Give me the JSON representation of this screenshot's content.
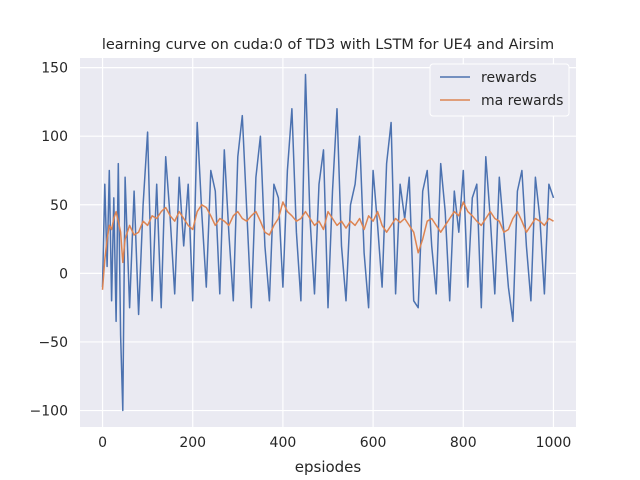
{
  "chart_data": {
    "type": "line",
    "title": "learning curve on cuda:0 of TD3 with LSTM for UE4 and Airsim",
    "xlabel": "epsiodes",
    "ylabel": "",
    "xlim": [
      -50,
      1050
    ],
    "ylim": [
      -112,
      157
    ],
    "xticks": [
      0,
      200,
      400,
      600,
      800,
      1000
    ],
    "yticks": [
      -100,
      -50,
      0,
      50,
      100,
      150
    ],
    "xtick_labels": [
      "0",
      "200",
      "400",
      "600",
      "800",
      "1000"
    ],
    "ytick_labels": [
      "−100",
      "−50",
      "0",
      "50",
      "100",
      "150"
    ],
    "grid": true,
    "legend_position": "top-right",
    "colors": {
      "background": "#eaeaf2",
      "grid": "#ffffff",
      "rewards": "#4c72b0",
      "ma_rewards": "#dd8452"
    },
    "series": [
      {
        "name": "rewards",
        "note_points": "approximate envelope of a noisy trace, sampled every 10 episodes; extremes at episode 45 (-100) and 450 (145)",
        "x": [
          0,
          5,
          10,
          15,
          20,
          25,
          30,
          35,
          40,
          45,
          50,
          60,
          70,
          80,
          90,
          100,
          110,
          120,
          130,
          140,
          150,
          160,
          170,
          180,
          190,
          200,
          210,
          220,
          230,
          240,
          250,
          260,
          270,
          280,
          290,
          300,
          310,
          320,
          330,
          340,
          350,
          360,
          370,
          380,
          390,
          400,
          410,
          420,
          430,
          440,
          450,
          460,
          470,
          480,
          490,
          500,
          510,
          520,
          530,
          540,
          550,
          560,
          570,
          580,
          590,
          600,
          610,
          620,
          630,
          640,
          650,
          660,
          670,
          680,
          690,
          700,
          710,
          720,
          730,
          740,
          750,
          760,
          770,
          780,
          790,
          800,
          810,
          820,
          830,
          840,
          850,
          860,
          870,
          880,
          890,
          900,
          910,
          920,
          930,
          940,
          950,
          960,
          970,
          980,
          990,
          1000
        ],
        "values": [
          -10,
          65,
          5,
          75,
          -20,
          55,
          -35,
          80,
          -45,
          -100,
          70,
          -25,
          60,
          -30,
          50,
          103,
          -20,
          65,
          -25,
          85,
          40,
          -15,
          70,
          20,
          65,
          -20,
          110,
          45,
          -10,
          75,
          60,
          -15,
          90,
          30,
          -20,
          85,
          115,
          45,
          -25,
          70,
          100,
          20,
          -20,
          65,
          55,
          -10,
          75,
          120,
          30,
          -20,
          145,
          40,
          -15,
          65,
          90,
          -25,
          60,
          120,
          20,
          -20,
          50,
          65,
          100,
          15,
          -25,
          75,
          35,
          -10,
          80,
          110,
          -15,
          65,
          40,
          70,
          -20,
          -25,
          60,
          75,
          20,
          -15,
          80,
          45,
          -20,
          60,
          30,
          75,
          -10,
          55,
          65,
          -25,
          85,
          40,
          -15,
          70,
          30,
          -10,
          -35,
          60,
          75,
          20,
          -20,
          70,
          40,
          -15,
          65,
          55
        ]
      },
      {
        "name": "ma rewards",
        "x": [
          0,
          5,
          10,
          15,
          20,
          25,
          30,
          35,
          40,
          45,
          50,
          60,
          70,
          80,
          90,
          100,
          110,
          120,
          130,
          140,
          150,
          160,
          170,
          180,
          190,
          200,
          210,
          220,
          230,
          240,
          250,
          260,
          270,
          280,
          290,
          300,
          310,
          320,
          330,
          340,
          350,
          360,
          370,
          380,
          390,
          400,
          410,
          420,
          430,
          440,
          450,
          460,
          470,
          480,
          490,
          500,
          510,
          520,
          530,
          540,
          550,
          560,
          570,
          580,
          590,
          600,
          610,
          620,
          630,
          640,
          650,
          660,
          670,
          680,
          690,
          700,
          710,
          720,
          730,
          740,
          750,
          760,
          770,
          780,
          790,
          800,
          810,
          820,
          830,
          840,
          850,
          860,
          870,
          880,
          890,
          900,
          910,
          920,
          930,
          940,
          950,
          960,
          970,
          980,
          990,
          1000
        ],
        "values": [
          -12,
          10,
          25,
          35,
          32,
          40,
          45,
          38,
          30,
          8,
          25,
          35,
          28,
          30,
          38,
          35,
          42,
          40,
          45,
          48,
          42,
          38,
          45,
          40,
          35,
          32,
          45,
          50,
          48,
          42,
          35,
          40,
          38,
          35,
          42,
          45,
          40,
          38,
          42,
          45,
          38,
          30,
          28,
          35,
          40,
          52,
          45,
          42,
          38,
          40,
          45,
          40,
          35,
          38,
          32,
          45,
          40,
          35,
          38,
          33,
          38,
          35,
          40,
          32,
          42,
          38,
          45,
          35,
          30,
          35,
          40,
          37,
          40,
          35,
          30,
          15,
          25,
          38,
          40,
          35,
          30,
          35,
          40,
          45,
          42,
          52,
          45,
          42,
          38,
          35,
          40,
          45,
          40,
          38,
          30,
          32,
          40,
          45,
          38,
          30,
          35,
          40,
          38,
          35,
          40,
          38
        ]
      }
    ]
  }
}
